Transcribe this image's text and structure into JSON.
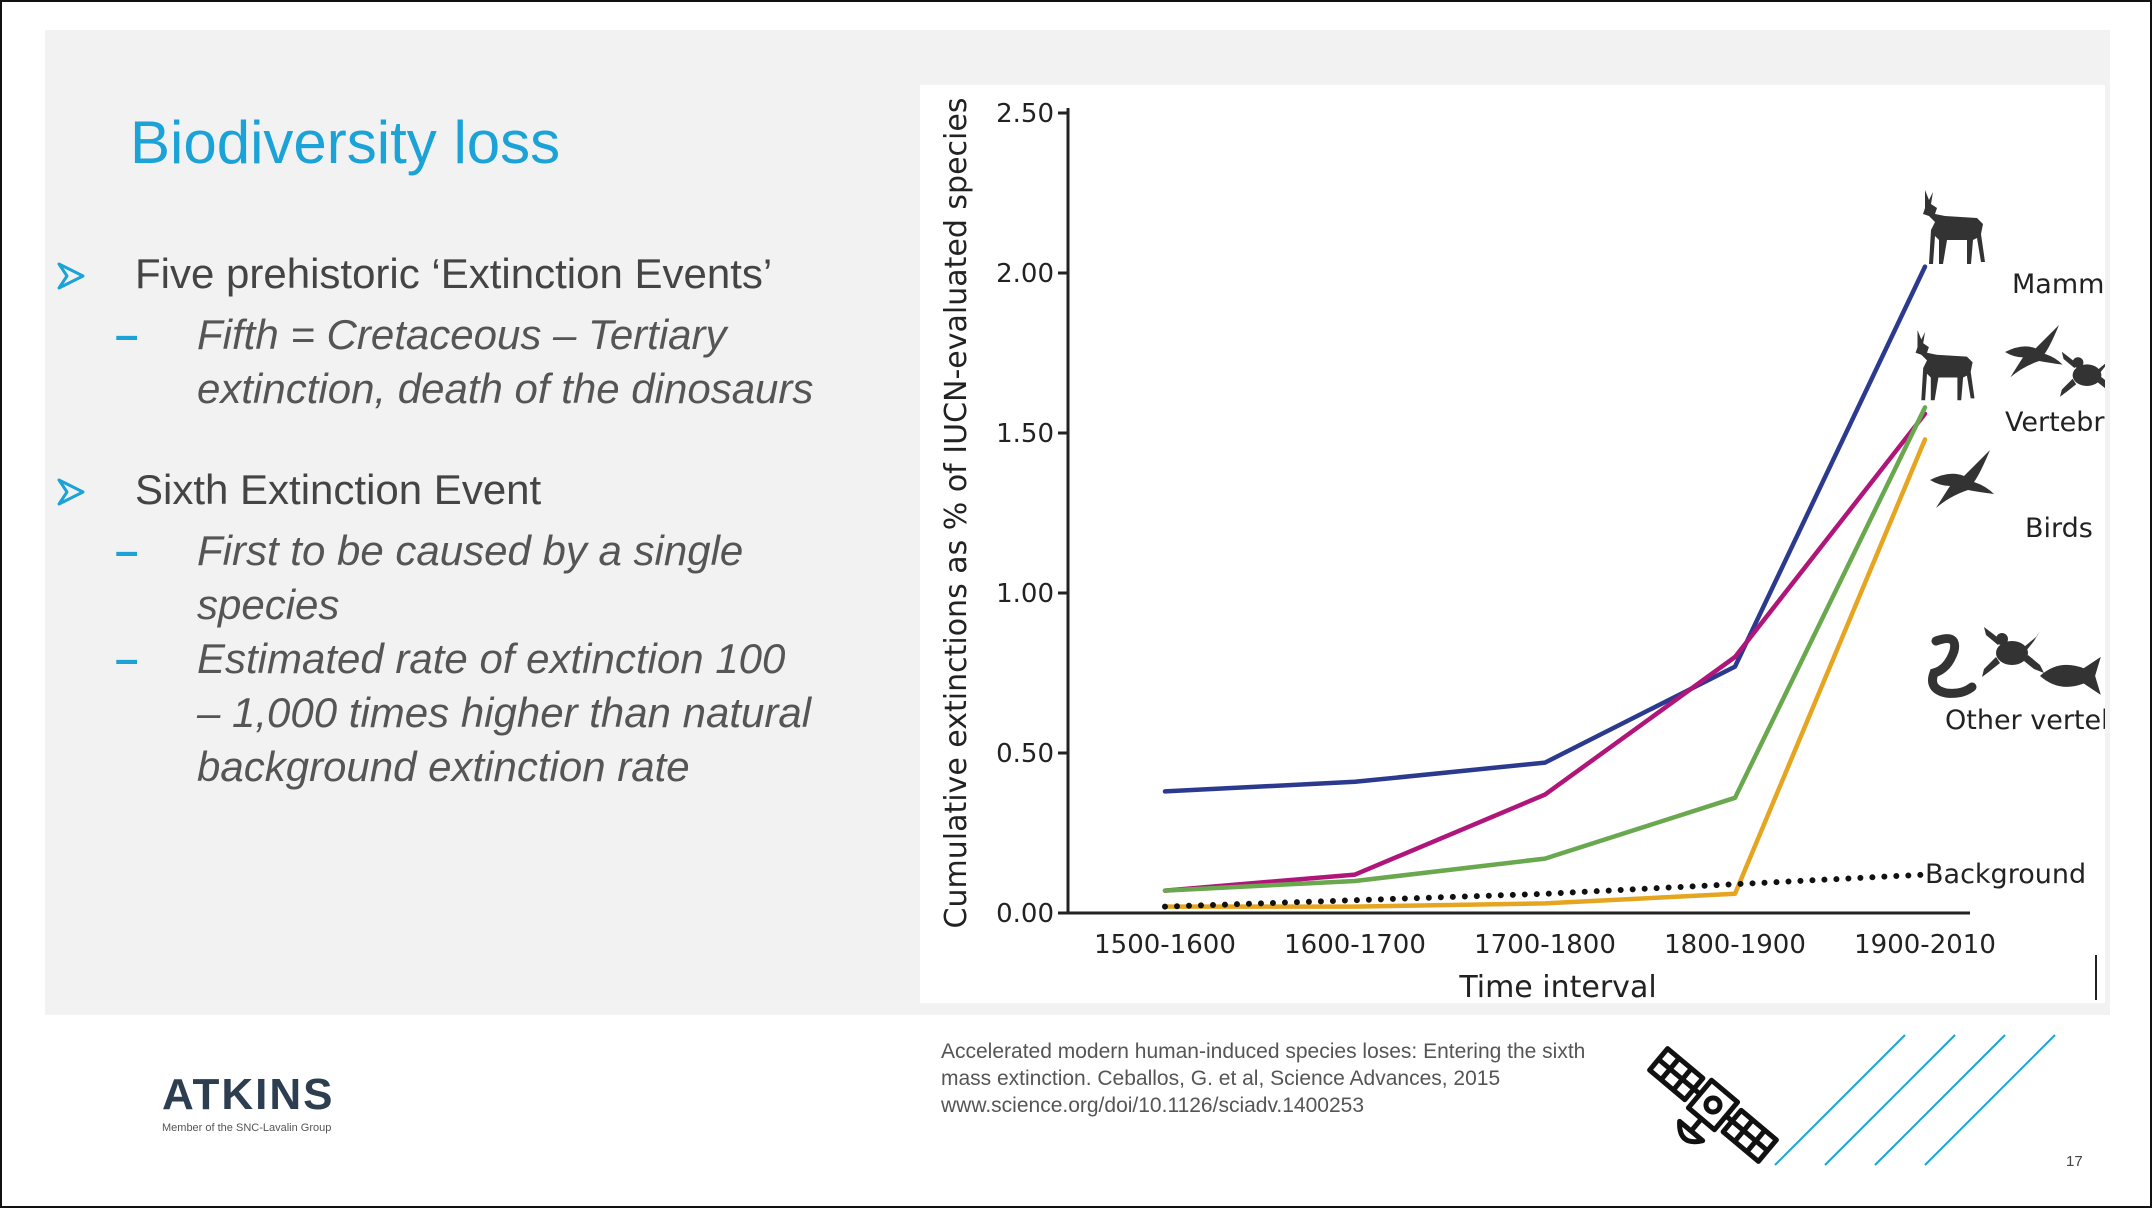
{
  "slide": {
    "title": "Biodiversity loss",
    "bullets": [
      {
        "text": "Five prehistoric ‘Extinction Events’",
        "subs": [
          [
            "Fifth = Cretaceous – Tertiary",
            "extinction, death of the dinosaurs"
          ]
        ]
      },
      {
        "text": "Sixth Extinction Event",
        "subs": [
          [
            "First to be caused by a single",
            "species"
          ],
          [
            "Estimated rate of extinction 100",
            "– 1,000 times higher than natural",
            "background extinction rate"
          ]
        ]
      }
    ],
    "citation": [
      "Accelerated modern human-induced species loses: Entering the sixth",
      "mass extinction.  Ceballos, G. et al, Science Advances, 2015",
      "www.science.org/doi/10.1126/sciadv.1400253"
    ],
    "logo": {
      "name": "ATKINS",
      "tagline": "Member of the SNC-Lavalin Group"
    },
    "page_number": "17",
    "bullet_icon": "arrow-bullet-icon",
    "sub_marker": "–",
    "colors": {
      "title": "#1ba3d8",
      "bullet": "#1ba3d8",
      "text": "#444444"
    }
  },
  "chart_data": {
    "type": "line",
    "title": "",
    "xlabel": "Time interval",
    "ylabel": "Cumulative extinctions as % of IUCN-evaluated species",
    "categories": [
      "1500-1600",
      "1600-1700",
      "1700-1800",
      "1800-1900",
      "1900-2010"
    ],
    "ylim": [
      0,
      2.5
    ],
    "yticks": [
      "0.00",
      "0.50",
      "1.00",
      "1.50",
      "2.00",
      "2.50"
    ],
    "grid": false,
    "series": [
      {
        "name": "Mammals",
        "color": "#2b3a8f",
        "style": "solid",
        "values": [
          0.38,
          0.41,
          0.47,
          0.77,
          2.02
        ]
      },
      {
        "name": "Vertebrates",
        "color": "#b0157a",
        "style": "solid",
        "values": [
          0.07,
          0.12,
          0.37,
          0.8,
          1.56
        ]
      },
      {
        "name": "Birds",
        "color": "#6aa84f",
        "style": "solid",
        "values": [
          0.07,
          0.1,
          0.17,
          0.36,
          1.58
        ]
      },
      {
        "name": "Other vertebrates",
        "color": "#e6a520",
        "style": "solid",
        "values": [
          0.02,
          0.02,
          0.03,
          0.06,
          1.48
        ]
      },
      {
        "name": "Background",
        "color": "#111111",
        "style": "dotted",
        "values": [
          0.02,
          0.04,
          0.06,
          0.09,
          0.12
        ]
      }
    ],
    "annotation_icons": [
      "deer-icon",
      "bird-icon",
      "frog-icon",
      "snake-icon",
      "fish-icon"
    ]
  }
}
